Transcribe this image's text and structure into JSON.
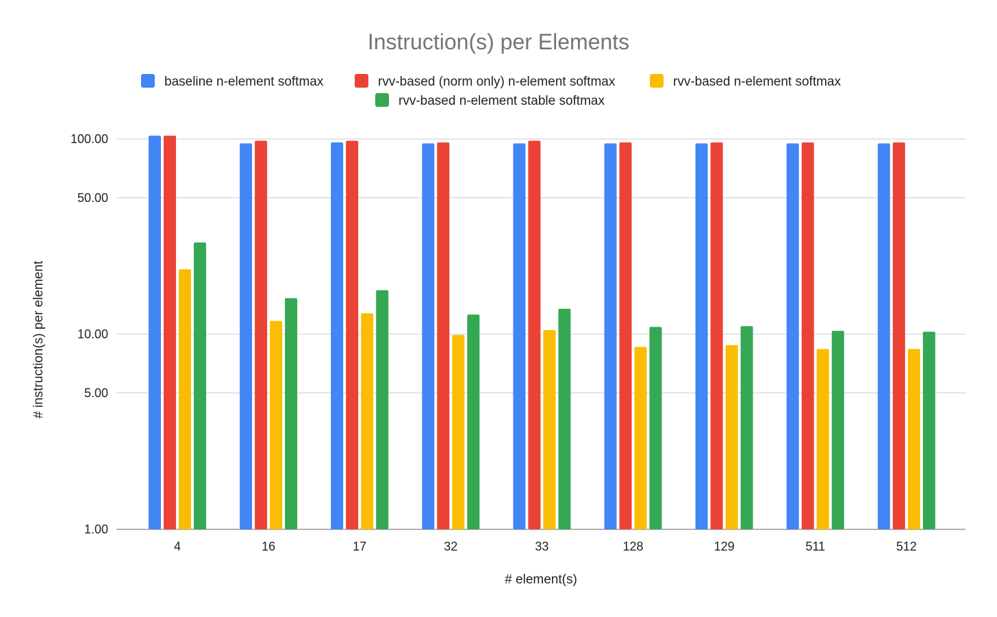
{
  "chart_data": {
    "type": "bar",
    "title": "Instruction(s) per Elements",
    "xlabel": "# element(s)",
    "ylabel": "# instruction(s) per element",
    "yscale": "log",
    "ylim": [
      1,
      110
    ],
    "yticks": [
      1,
      5,
      10,
      50,
      100
    ],
    "ytick_labels": [
      "1.00",
      "5.00",
      "10.00",
      "50.00",
      "100.00"
    ],
    "grid": true,
    "legend_position": "top",
    "categories": [
      "4",
      "16",
      "17",
      "32",
      "33",
      "128",
      "129",
      "511",
      "512"
    ],
    "series": [
      {
        "name": "baseline n-element softmax",
        "color": "#4285f4",
        "values": [
          104,
          95,
          96,
          95,
          95,
          95,
          95,
          95,
          95
        ]
      },
      {
        "name": "rvv-based (norm only) n-element softmax",
        "color": "#ea4335",
        "values": [
          104,
          98,
          98,
          96,
          98,
          96,
          96,
          96,
          96
        ]
      },
      {
        "name": "rvv-based n-element softmax",
        "color": "#fbbc04",
        "values": [
          21.5,
          11.7,
          12.8,
          9.9,
          10.5,
          8.6,
          8.8,
          8.4,
          8.4
        ]
      },
      {
        "name": "rvv-based n-element stable softmax",
        "color": "#34a853",
        "values": [
          29.5,
          15.3,
          16.8,
          12.6,
          13.5,
          10.9,
          11.0,
          10.4,
          10.3
        ]
      }
    ]
  }
}
